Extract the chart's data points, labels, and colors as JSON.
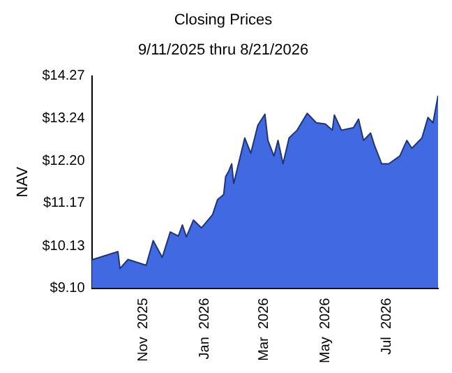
{
  "chart_data": {
    "type": "area",
    "title": "Closing Prices",
    "subtitle": "9/11/2025 thru 8/21/2026",
    "ylabel": "NAV",
    "x": [
      "2025-09-11",
      "2025-10-07",
      "2025-10-09",
      "2025-10-17",
      "2025-11-04",
      "2025-11-11",
      "2025-11-20",
      "2025-11-28",
      "2025-12-06",
      "2025-12-10",
      "2025-12-14",
      "2025-12-21",
      "2025-12-29",
      "2026-01-09",
      "2026-01-14",
      "2026-01-20",
      "2026-01-22",
      "2026-01-25",
      "2026-01-28",
      "2026-01-30",
      "2026-02-10",
      "2026-02-16",
      "2026-02-23",
      "2026-03-02",
      "2026-03-05",
      "2026-03-11",
      "2026-03-15",
      "2026-03-20",
      "2026-03-26",
      "2026-04-03",
      "2026-04-13",
      "2026-04-22",
      "2026-05-01",
      "2026-05-08",
      "2026-05-10",
      "2026-05-17",
      "2026-05-29",
      "2026-06-03",
      "2026-06-08",
      "2026-06-15",
      "2026-06-19",
      "2026-06-26",
      "2026-07-03",
      "2026-07-14",
      "2026-07-21",
      "2026-07-26",
      "2026-08-05",
      "2026-08-11",
      "2026-08-16",
      "2026-08-21"
    ],
    "series": [
      {
        "color": "#4169e1",
        "values": [
          9.79,
          9.99,
          9.58,
          9.8,
          9.66,
          10.26,
          9.85,
          10.47,
          10.37,
          10.64,
          10.35,
          10.76,
          10.57,
          10.89,
          11.26,
          11.38,
          11.82,
          11.95,
          12.13,
          11.65,
          12.76,
          12.39,
          13.07,
          13.34,
          12.7,
          12.32,
          12.7,
          12.13,
          12.76,
          12.95,
          13.36,
          13.13,
          13.1,
          12.95,
          13.32,
          12.95,
          13.01,
          13.22,
          12.7,
          12.88,
          12.57,
          12.13,
          12.13,
          12.32,
          12.7,
          12.51,
          12.76,
          13.26,
          13.13,
          13.79
        ]
      }
    ],
    "xlim": [
      "2025-09-11",
      "2026-08-21"
    ],
    "xticks": [
      {
        "value": "2025-11-01",
        "label": "Nov  2025"
      },
      {
        "value": "2026-01-01",
        "label": "Jan  2026"
      },
      {
        "value": "2026-03-01",
        "label": "Mar  2026"
      },
      {
        "value": "2026-05-01",
        "label": "May  2026"
      },
      {
        "value": "2026-07-01",
        "label": "Jul  2026"
      }
    ],
    "ylim": [
      9.1,
      14.27
    ],
    "yticks": [
      {
        "value": 9.1,
        "label": "$9.10"
      },
      {
        "value": 10.13,
        "label": "$10.13"
      },
      {
        "value": 11.17,
        "label": "$11.17"
      },
      {
        "value": 12.2,
        "label": "$12.20"
      },
      {
        "value": 13.24,
        "label": "$13.24"
      },
      {
        "value": 14.27,
        "label": "$14.27"
      }
    ],
    "grid": false,
    "legend": false,
    "marker": "none",
    "line_style": "solid"
  }
}
